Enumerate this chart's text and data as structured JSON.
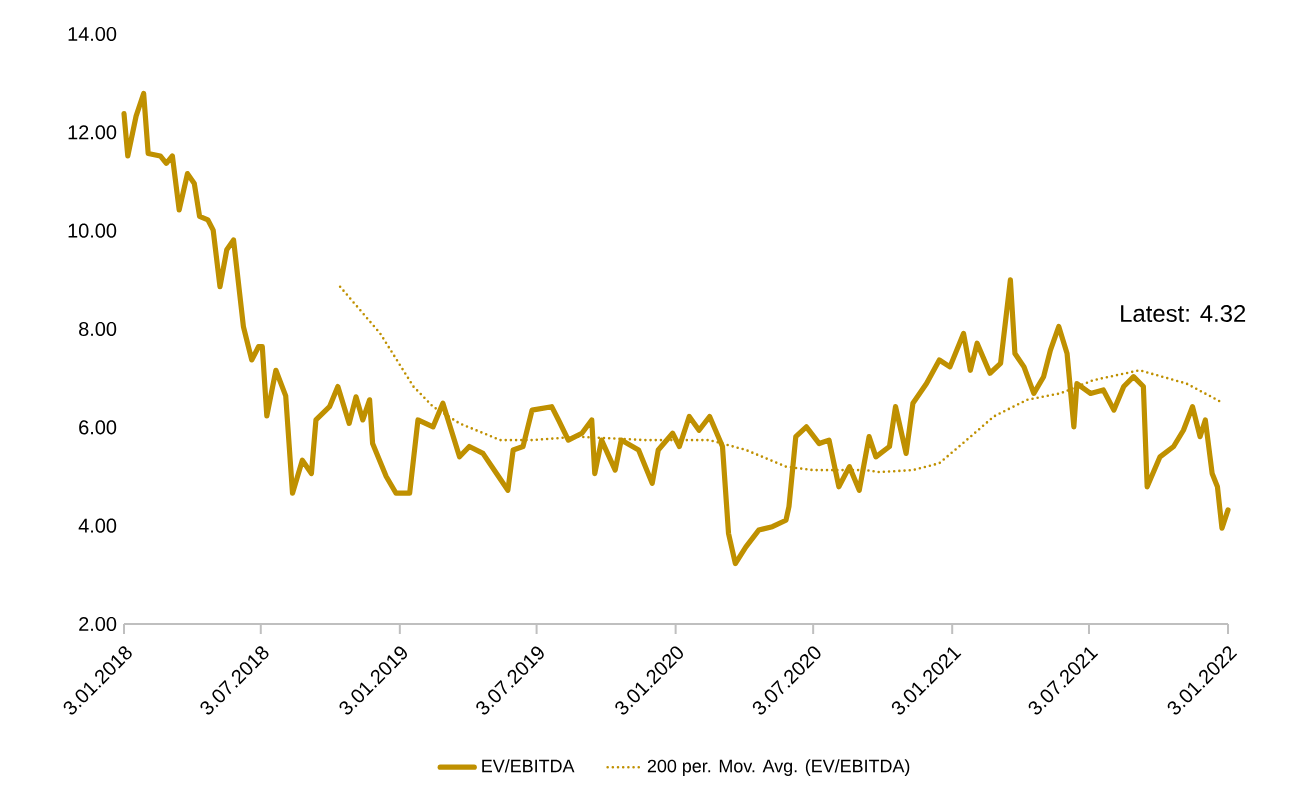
{
  "chart_data": {
    "type": "line",
    "annotations": [
      "Latest: 4.32"
    ],
    "xlim": [
      "2018-01-03",
      "2022-01-03"
    ],
    "ylim": [
      2,
      14
    ],
    "xticks": [
      {
        "value": "2018-01-03",
        "label": "3.01.2018"
      },
      {
        "value": "2018-07-03",
        "label": "3.07.2018"
      },
      {
        "value": "2019-01-03",
        "label": "3.01.2019"
      },
      {
        "value": "2019-07-03",
        "label": "3.07.2019"
      },
      {
        "value": "2020-01-03",
        "label": "3.01.2020"
      },
      {
        "value": "2020-07-03",
        "label": "3.07.2020"
      },
      {
        "value": "2021-01-03",
        "label": "3.01.2021"
      },
      {
        "value": "2021-07-03",
        "label": "3.07.2021"
      },
      {
        "value": "2022-01-03",
        "label": "3.01.2022"
      }
    ],
    "yticks": [
      {
        "value": 2,
        "label": "2.00"
      },
      {
        "value": 4,
        "label": "4.00"
      },
      {
        "value": 6,
        "label": "6.00"
      },
      {
        "value": 8,
        "label": "8.00"
      },
      {
        "value": 10,
        "label": "10.00"
      },
      {
        "value": 12,
        "label": "12.00"
      },
      {
        "value": 14,
        "label": "14.00"
      }
    ],
    "grid": false,
    "legend": "bottom",
    "marker": "none",
    "series": [
      {
        "name": "EV/EBITDA",
        "color": "#bf9000",
        "line_style": "solid",
        "x": [
          "2018-01-03",
          "2018-01-08",
          "2018-01-19",
          "2018-01-29",
          "2018-02-04",
          "2018-02-20",
          "2018-02-28",
          "2018-03-08",
          "2018-03-17",
          "2018-03-28",
          "2018-04-06",
          "2018-04-13",
          "2018-04-24",
          "2018-05-01",
          "2018-05-10",
          "2018-05-19",
          "2018-05-28",
          "2018-06-10",
          "2018-06-21",
          "2018-06-30",
          "2018-07-05",
          "2018-07-11",
          "2018-07-23",
          "2018-08-05",
          "2018-08-14",
          "2018-08-27",
          "2018-09-08",
          "2018-09-14",
          "2018-10-02",
          "2018-10-13",
          "2018-10-28",
          "2018-11-06",
          "2018-11-15",
          "2018-11-24",
          "2018-11-28",
          "2018-12-16",
          "2018-12-29",
          "2019-01-16",
          "2019-01-27",
          "2019-02-16",
          "2019-03-01",
          "2019-03-23",
          "2019-04-05",
          "2019-04-23",
          "2019-05-11",
          "2019-05-26",
          "2019-06-02",
          "2019-06-15",
          "2019-06-27",
          "2019-07-23",
          "2019-08-01",
          "2019-08-14",
          "2019-09-01",
          "2019-09-14",
          "2019-09-18",
          "2019-09-27",
          "2019-10-15",
          "2019-10-23",
          "2019-11-15",
          "2019-12-03",
          "2019-12-11",
          "2019-12-30",
          "2020-01-08",
          "2020-01-21",
          "2020-02-03",
          "2020-02-17",
          "2020-03-05",
          "2020-03-13",
          "2020-03-22",
          "2020-04-05",
          "2020-04-22",
          "2020-05-10",
          "2020-05-28",
          "2020-06-01",
          "2020-06-10",
          "2020-06-24",
          "2020-07-11",
          "2020-07-24",
          "2020-08-06",
          "2020-08-20",
          "2020-09-02",
          "2020-09-15",
          "2020-09-24",
          "2020-10-12",
          "2020-10-20",
          "2020-11-03",
          "2020-11-12",
          "2020-11-30",
          "2020-12-17",
          "2020-12-31",
          "2021-01-18",
          "2021-01-27",
          "2021-02-05",
          "2021-02-22",
          "2021-03-08",
          "2021-03-21",
          "2021-03-27",
          "2021-04-08",
          "2021-04-21",
          "2021-05-04",
          "2021-05-13",
          "2021-05-24",
          "2021-06-04",
          "2021-06-13",
          "2021-06-17",
          "2021-07-05",
          "2021-07-22",
          "2021-08-05",
          "2021-08-18",
          "2021-08-31",
          "2021-09-13",
          "2021-09-18",
          "2021-10-05",
          "2021-10-23",
          "2021-11-05",
          "2021-11-17",
          "2021-11-27",
          "2021-12-04",
          "2021-12-13",
          "2021-12-20",
          "2021-12-26",
          "2022-01-03"
        ],
        "values": [
          12.38,
          11.52,
          12.33,
          12.79,
          11.57,
          11.52,
          11.37,
          11.52,
          10.42,
          11.16,
          10.96,
          10.29,
          10.22,
          10.01,
          8.86,
          9.61,
          9.81,
          8.05,
          7.37,
          7.64,
          7.64,
          6.23,
          7.16,
          6.64,
          4.66,
          5.33,
          5.06,
          6.15,
          6.42,
          6.83,
          6.08,
          6.62,
          6.15,
          6.56,
          5.67,
          5.0,
          4.66,
          4.66,
          6.15,
          6.01,
          6.49,
          5.4,
          5.61,
          5.47,
          5.06,
          4.72,
          5.54,
          5.61,
          6.35,
          6.42,
          6.15,
          5.74,
          5.88,
          6.15,
          5.06,
          5.74,
          5.13,
          5.74,
          5.54,
          4.86,
          5.54,
          5.88,
          5.61,
          6.22,
          5.94,
          6.22,
          5.61,
          3.84,
          3.23,
          3.57,
          3.91,
          3.98,
          4.11,
          4.39,
          5.81,
          6.01,
          5.67,
          5.74,
          4.79,
          5.2,
          4.72,
          5.81,
          5.4,
          5.61,
          6.42,
          5.47,
          6.49,
          6.89,
          7.37,
          7.23,
          7.91,
          7.16,
          7.71,
          7.1,
          7.3,
          9.0,
          7.5,
          7.23,
          6.69,
          7.03,
          7.57,
          8.05,
          7.5,
          6.01,
          6.89,
          6.69,
          6.76,
          6.35,
          6.83,
          7.03,
          6.83,
          4.79,
          5.4,
          5.61,
          5.94,
          6.42,
          5.81,
          6.15,
          5.06,
          4.79,
          3.95,
          4.32
        ]
      },
      {
        "name": "200 per. Mov. Avg. (EV/EBITDA)",
        "color": "#bf9000",
        "line_style": "dotted",
        "x": [
          "2018-10-16",
          "2018-12-08",
          "2019-01-21",
          "2019-02-16",
          "2019-03-23",
          "2019-05-16",
          "2019-06-27",
          "2019-08-27",
          "2019-11-24",
          "2020-02-17",
          "2020-04-05",
          "2020-05-28",
          "2020-07-03",
          "2020-09-11",
          "2020-09-29",
          "2020-11-12",
          "2020-12-17",
          "2021-01-22",
          "2021-02-27",
          "2021-04-12",
          "2021-05-26",
          "2021-07-09",
          "2021-09-08",
          "2021-11-09",
          "2021-12-28"
        ],
        "values": [
          8.86,
          7.91,
          6.83,
          6.42,
          6.08,
          5.74,
          5.74,
          5.81,
          5.74,
          5.74,
          5.54,
          5.2,
          5.13,
          5.13,
          5.09,
          5.13,
          5.27,
          5.74,
          6.22,
          6.56,
          6.69,
          6.96,
          7.16,
          6.89,
          6.49
        ]
      }
    ]
  }
}
